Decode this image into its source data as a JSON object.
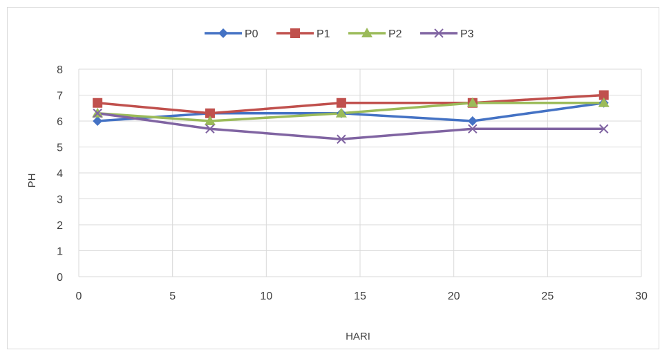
{
  "chart_data": {
    "type": "scatter",
    "title": "",
    "xlabel": "HARI",
    "ylabel": "PH",
    "xlim": [
      0,
      30
    ],
    "ylim": [
      0,
      8
    ],
    "xticks": [
      0,
      5,
      10,
      15,
      20,
      25,
      30
    ],
    "yticks": [
      0,
      1,
      2,
      3,
      4,
      5,
      6,
      7,
      8
    ],
    "grid": true,
    "legend_position": "top",
    "series": [
      {
        "name": "P0",
        "color": "#4472c4",
        "marker": "diamond",
        "x": [
          1,
          7,
          14,
          21,
          28
        ],
        "y": [
          6.0,
          6.3,
          6.3,
          6.0,
          6.7
        ]
      },
      {
        "name": "P1",
        "color": "#c0504d",
        "marker": "square",
        "x": [
          1,
          7,
          14,
          21,
          28
        ],
        "y": [
          6.7,
          6.3,
          6.7,
          6.7,
          7.0
        ]
      },
      {
        "name": "P2",
        "color": "#9bbb59",
        "marker": "triangle",
        "x": [
          1,
          7,
          14,
          21,
          28
        ],
        "y": [
          6.3,
          6.0,
          6.3,
          6.7,
          6.7
        ]
      },
      {
        "name": "P3",
        "color": "#8064a2",
        "marker": "x",
        "x": [
          1,
          7,
          14,
          21,
          28
        ],
        "y": [
          6.3,
          5.7,
          5.3,
          5.7,
          5.7
        ]
      }
    ]
  }
}
